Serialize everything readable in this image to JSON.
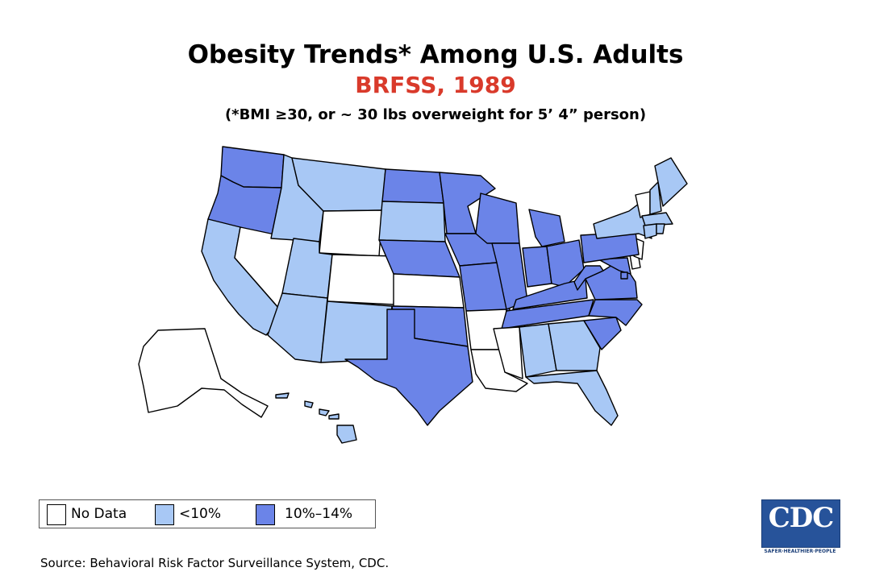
{
  "title": "Obesity Trends* Among U.S. Adults",
  "subtitle": "BRFSS, 1989",
  "note": "(*BMI ≥30, or ~ 30 lbs overweight for 5’ 4” person)",
  "colors": {
    "no_data": "#ffffff",
    "lt10": "#a8c8f5",
    "10_14": "#6b84e8",
    "subtitle": "#d93a2b"
  },
  "legend": [
    {
      "label": "No Data",
      "category": "no_data"
    },
    {
      "label": "<10%",
      "category": "lt10"
    },
    {
      "label": "10%–14%",
      "category": "10_14"
    }
  ],
  "source": "Source: Behavioral Risk Factor Surveillance System, CDC.",
  "logo": {
    "text": "CDC",
    "tagline": "SAFER·HEALTHIER·PEOPLE"
  },
  "states": {
    "WA": "10_14",
    "OR": "10_14",
    "CA": "lt10",
    "NV": "no_data",
    "ID": "lt10",
    "MT": "lt10",
    "WY": "no_data",
    "UT": "lt10",
    "AZ": "lt10",
    "CO": "no_data",
    "NM": "lt10",
    "ND": "10_14",
    "SD": "lt10",
    "NE": "10_14",
    "KS": "no_data",
    "OK": "10_14",
    "TX": "10_14",
    "MN": "10_14",
    "IA": "10_14",
    "MO": "10_14",
    "AR": "no_data",
    "LA": "no_data",
    "WI": "10_14",
    "IL": "10_14",
    "MI": "10_14",
    "IN": "10_14",
    "OH": "10_14",
    "KY": "10_14",
    "TN": "10_14",
    "MS": "no_data",
    "AL": "lt10",
    "GA": "lt10",
    "FL": "lt10",
    "SC": "10_14",
    "NC": "10_14",
    "VA": "10_14",
    "WV": "10_14",
    "MD": "10_14",
    "DE": "no_data",
    "NJ": "no_data",
    "PA": "10_14",
    "NY": "lt10",
    "VT": "no_data",
    "NH": "lt10",
    "ME": "lt10",
    "MA": "lt10",
    "CT": "lt10",
    "RI": "lt10",
    "DC": "10_14",
    "AK": "no_data",
    "HI": "lt10"
  }
}
